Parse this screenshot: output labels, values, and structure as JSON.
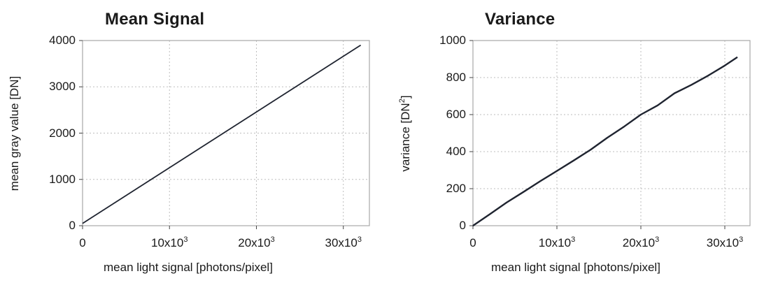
{
  "chart_data": [
    {
      "type": "line",
      "title": "Mean Signal",
      "xlabel": "mean light signal [photons/pixel]",
      "ylabel": "mean gray value [DN]",
      "xlim": [
        0,
        33000
      ],
      "ylim": [
        0,
        4000
      ],
      "x_ticks": [
        0,
        10000,
        20000,
        30000
      ],
      "x_tick_labels": [
        "0",
        "10x10",
        "20x10",
        "30x10"
      ],
      "x_tick_exponent": "3",
      "y_ticks": [
        0,
        1000,
        2000,
        3000,
        4000
      ],
      "y_tick_labels": [
        "0",
        "1000",
        "2000",
        "3000",
        "4000"
      ],
      "grid": true,
      "series": [
        {
          "color": "#1f2430",
          "x": [
            0,
            32000
          ],
          "y": [
            50,
            3900
          ]
        }
      ]
    },
    {
      "type": "line",
      "title": "Variance",
      "xlabel": "mean light signal [photons/pixel]",
      "ylabel": "variance [DN",
      "ylabel_superscript": "2",
      "ylabel_suffix": "]",
      "xlim": [
        0,
        33000
      ],
      "ylim": [
        0,
        1000
      ],
      "x_ticks": [
        0,
        10000,
        20000,
        30000
      ],
      "x_tick_labels": [
        "0",
        "10x10",
        "20x10",
        "30x10"
      ],
      "x_tick_exponent": "3",
      "y_ticks": [
        0,
        200,
        400,
        600,
        800,
        1000
      ],
      "y_tick_labels": [
        "0",
        "200",
        "400",
        "600",
        "800",
        "1000"
      ],
      "grid": true,
      "series": [
        {
          "color": "#1f2430",
          "x": [
            0,
            2000,
            4000,
            6000,
            8000,
            10000,
            12000,
            14000,
            16000,
            18000,
            20000,
            22000,
            24000,
            26000,
            28000,
            30000,
            31500
          ],
          "y": [
            0,
            62,
            125,
            182,
            240,
            296,
            352,
            410,
            475,
            535,
            600,
            650,
            715,
            760,
            810,
            865,
            910
          ]
        }
      ]
    }
  ]
}
